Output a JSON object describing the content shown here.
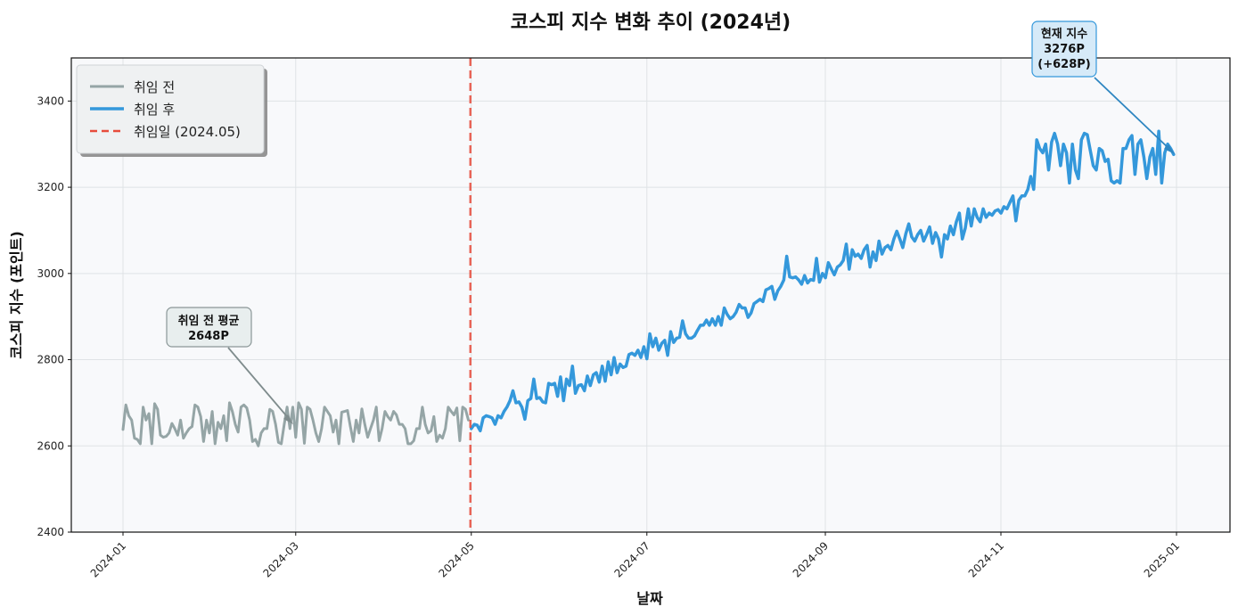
{
  "chart_data": {
    "type": "line",
    "title": "코스피 지수 변화 추이 (2024년)",
    "xlabel": "날짜",
    "ylabel": "코스피 지수 (포인트)",
    "ylim": [
      2400,
      3500
    ],
    "yticks": [
      2400,
      2600,
      2800,
      3000,
      3200,
      3400
    ],
    "xticks": [
      "2024-01",
      "2024-03",
      "2024-05",
      "2024-07",
      "2024-09",
      "2024-11",
      "2025-01"
    ],
    "grid": true,
    "legend_position": "upper left",
    "legend": [
      {
        "label": "취임 전",
        "color": "#95a5a6",
        "style": "solid"
      },
      {
        "label": "취임 후",
        "color": "#3498db",
        "style": "solid"
      },
      {
        "label": "취임일 (2024.05)",
        "color": "#e74c3c",
        "style": "dashed"
      }
    ],
    "vline": {
      "date": "2024-05-01",
      "label": "취임일 (2024.05)",
      "color": "#e74c3c"
    },
    "series": [
      {
        "name": "취임 전",
        "color": "#95a5a6",
        "x_start": "2024-01-01",
        "x_end": "2024-04-30",
        "values": [
          2638,
          2695,
          2670,
          2660,
          2618,
          2615,
          2605,
          2690,
          2660,
          2675,
          2605,
          2698,
          2685,
          2625,
          2620,
          2622,
          2630,
          2652,
          2640,
          2625,
          2660,
          2618,
          2630,
          2640,
          2645,
          2695,
          2690,
          2668,
          2610,
          2660,
          2630,
          2680,
          2605,
          2655,
          2640,
          2670,
          2612,
          2700,
          2680,
          2650,
          2632,
          2690,
          2695,
          2688,
          2660,
          2610,
          2615,
          2600,
          2630,
          2640,
          2640,
          2685,
          2680,
          2650,
          2608,
          2605,
          2650,
          2690,
          2640,
          2690,
          2620,
          2700,
          2685,
          2606,
          2690,
          2685,
          2660,
          2630,
          2610,
          2640,
          2690,
          2680,
          2670,
          2632,
          2660,
          2605,
          2678,
          2680,
          2682,
          2645,
          2610,
          2660,
          2630,
          2686,
          2650,
          2620,
          2640,
          2660,
          2690,
          2612,
          2640,
          2680,
          2668,
          2660,
          2680,
          2672,
          2650,
          2650,
          2640,
          2605,
          2605,
          2612,
          2640,
          2640,
          2690,
          2650,
          2630,
          2635,
          2668,
          2610,
          2625,
          2618,
          2640,
          2690,
          2680,
          2672,
          2688,
          2612,
          2690,
          2685,
          2660
        ]
      },
      {
        "name": "취임 후",
        "color": "#3498db",
        "x_start": "2024-05-01",
        "x_end": "2024-12-31",
        "values": [
          2640,
          2650,
          2648,
          2635,
          2665,
          2670,
          2668,
          2665,
          2650,
          2670,
          2665,
          2680,
          2690,
          2705,
          2728,
          2700,
          2702,
          2690,
          2662,
          2705,
          2710,
          2755,
          2710,
          2712,
          2702,
          2700,
          2745,
          2742,
          2745,
          2715,
          2760,
          2705,
          2755,
          2740,
          2785,
          2722,
          2740,
          2742,
          2728,
          2762,
          2740,
          2765,
          2770,
          2748,
          2785,
          2750,
          2795,
          2765,
          2805,
          2770,
          2790,
          2782,
          2785,
          2812,
          2815,
          2810,
          2822,
          2805,
          2830,
          2802,
          2860,
          2830,
          2850,
          2822,
          2838,
          2845,
          2810,
          2865,
          2840,
          2850,
          2852,
          2890,
          2860,
          2850,
          2850,
          2855,
          2868,
          2880,
          2880,
          2892,
          2880,
          2895,
          2880,
          2900,
          2880,
          2920,
          2905,
          2895,
          2900,
          2910,
          2928,
          2920,
          2920,
          2898,
          2908,
          2930,
          2935,
          2940,
          2935,
          2962,
          2965,
          2970,
          2940,
          2960,
          2970,
          2985,
          3040,
          2992,
          2990,
          2992,
          2985,
          2975,
          2995,
          2978,
          2986,
          2984,
          3035,
          2980,
          3000,
          2990,
          3025,
          3010,
          2997,
          3015,
          3020,
          3030,
          3068,
          3010,
          3055,
          3040,
          3045,
          3035,
          3055,
          3065,
          3015,
          3050,
          3030,
          3075,
          3045,
          3060,
          3065,
          3055,
          3080,
          3098,
          3080,
          3060,
          3092,
          3115,
          3085,
          3075,
          3090,
          3100,
          3075,
          3090,
          3108,
          3070,
          3095,
          3080,
          3038,
          3090,
          3080,
          3110,
          3090,
          3120,
          3140,
          3080,
          3105,
          3150,
          3110,
          3150,
          3130,
          3120,
          3150,
          3130,
          3140,
          3135,
          3145,
          3148,
          3140,
          3155,
          3150,
          3165,
          3180,
          3122,
          3170,
          3180,
          3180,
          3195,
          3225,
          3195,
          3310,
          3290,
          3280,
          3300,
          3240,
          3305,
          3325,
          3300,
          3250,
          3300,
          3280,
          3210,
          3300,
          3240,
          3220,
          3310,
          3325,
          3322,
          3285,
          3250,
          3240,
          3290,
          3285,
          3260,
          3265,
          3215,
          3210,
          3215,
          3210,
          3290,
          3290,
          3310,
          3320,
          3230,
          3300,
          3310,
          3270,
          3220,
          3270,
          3290,
          3230,
          3330,
          3210,
          3280,
          3300,
          3290,
          3276
        ]
      }
    ],
    "annotations": [
      {
        "id": "pre_avg",
        "text_line1": "취임 전 평균",
        "text_line2": "2648P",
        "value": 2648,
        "arrow_to": [
          "2024-03-01",
          2648
        ]
      },
      {
        "id": "current",
        "text_line1": "현재 지수",
        "text_line2": "3276P",
        "text_line3": "(+628P)",
        "value": 3276,
        "change": 628,
        "arrow_to": [
          "2024-12-31",
          3276
        ]
      }
    ]
  },
  "colors": {
    "pre": "#95a5a6",
    "post": "#3498db",
    "vline": "#e74c3c",
    "plot_bg": "#f8f9fb",
    "grid": "#dfe3e6",
    "ann_pre_bg": "#e8eeee",
    "ann_pre_border": "#8a9697",
    "ann_pre_arrow": "#7f8c8d",
    "ann_post_bg": "#d6eaf8",
    "ann_post_border": "#3498db",
    "ann_post_arrow": "#2e86c1"
  }
}
